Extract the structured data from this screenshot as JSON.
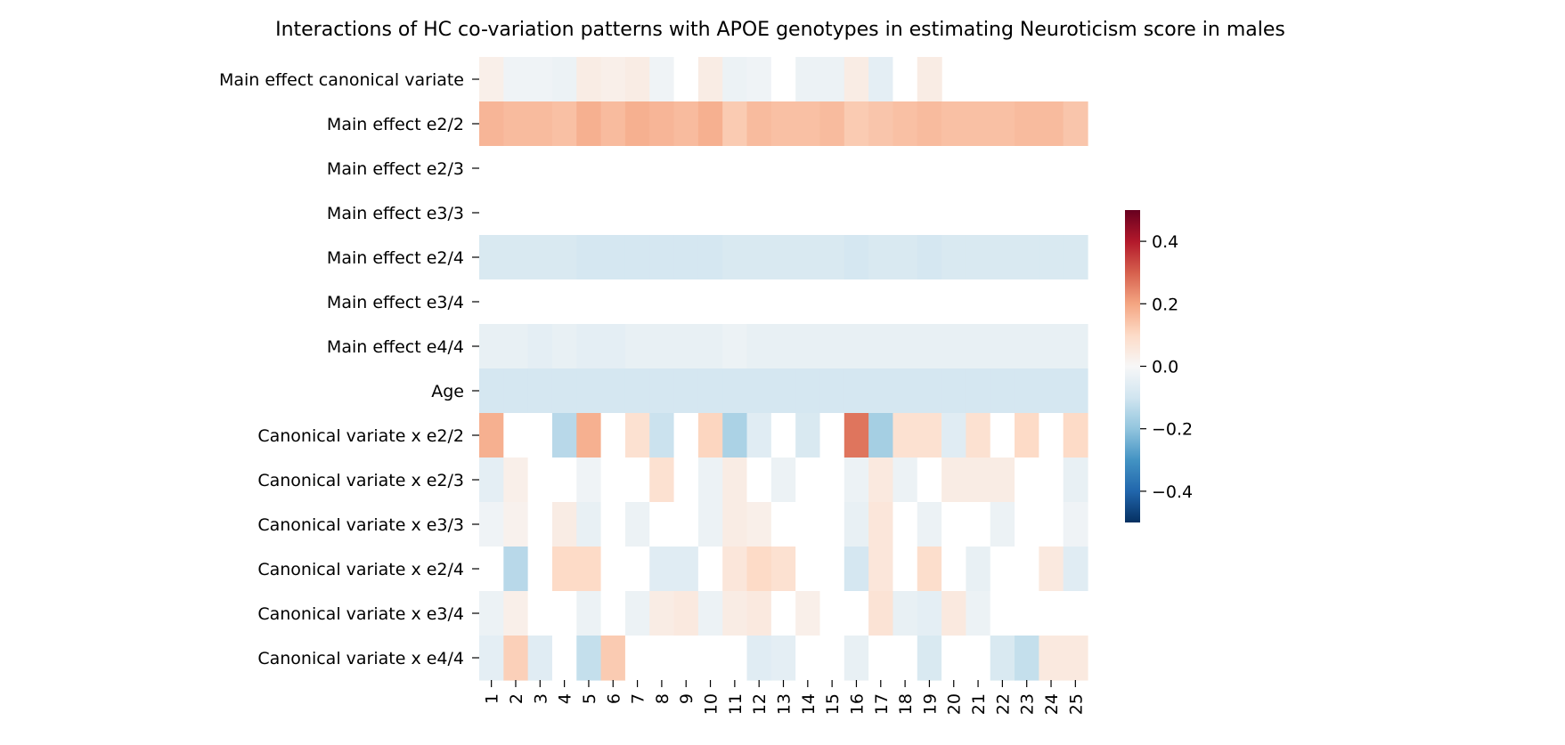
{
  "chart_data": {
    "type": "heatmap",
    "title": "Interactions of HC co-variation patterns with APOE genotypes in estimating Neuroticism score in males",
    "xlabel": "",
    "ylabel": "",
    "x_tick_labels": [
      "1",
      "2",
      "3",
      "4",
      "5",
      "6",
      "7",
      "8",
      "9",
      "10",
      "11",
      "12",
      "13",
      "14",
      "15",
      "16",
      "17",
      "18",
      "19",
      "20",
      "21",
      "22",
      "23",
      "24",
      "25"
    ],
    "y_tick_labels": [
      "Main effect canonical variate",
      "Main effect e2/2",
      "Main effect e2/3",
      "Main effect e3/3",
      "Main effect e2/4",
      "Main effect e3/4",
      "Main effect e4/4",
      "Age",
      "Canonical variate x e2/2",
      "Canonical variate x e2/3",
      "Canonical variate x e3/3",
      "Canonical variate x e2/4",
      "Canonical variate x e3/4",
      "Canonical variate x e4/4"
    ],
    "colormap": "RdBu_r",
    "vmin": -0.5,
    "vmax": 0.5,
    "colorbar_ticks": [
      -0.4,
      -0.2,
      0.0,
      0.2,
      0.4
    ],
    "colorbar_tick_labels": [
      "−0.4",
      "−0.2",
      "0.0",
      "0.2",
      "0.4"
    ],
    "values": [
      [
        0.03,
        -0.02,
        -0.02,
        -0.03,
        0.04,
        0.03,
        0.04,
        -0.02,
        0,
        0.04,
        -0.03,
        -0.02,
        0,
        -0.03,
        -0.03,
        0.04,
        -0.05,
        0,
        0.04,
        null,
        null,
        null,
        null,
        null,
        null
      ],
      [
        0.17,
        0.16,
        0.16,
        0.15,
        0.18,
        0.16,
        0.18,
        0.17,
        0.16,
        0.18,
        0.13,
        0.16,
        0.15,
        0.15,
        0.16,
        0.13,
        0.14,
        0.15,
        0.16,
        0.15,
        0.15,
        0.15,
        0.16,
        0.16,
        0.14
      ],
      [
        0,
        0,
        0,
        0,
        0,
        0,
        0,
        0,
        0,
        0,
        0,
        0,
        0,
        0,
        0,
        0,
        0,
        0,
        0,
        0,
        0,
        0,
        0,
        0,
        0
      ],
      [
        0,
        0,
        0,
        0,
        0,
        0,
        0,
        0,
        0,
        0,
        0,
        0,
        0,
        0,
        0,
        0,
        0,
        0,
        0,
        0,
        0,
        0,
        0,
        0,
        0
      ],
      [
        -0.08,
        -0.08,
        -0.08,
        -0.08,
        -0.09,
        -0.09,
        -0.09,
        -0.09,
        -0.09,
        -0.09,
        -0.08,
        -0.08,
        -0.08,
        -0.08,
        -0.08,
        -0.09,
        -0.08,
        -0.08,
        -0.09,
        -0.08,
        -0.08,
        -0.08,
        -0.08,
        -0.08,
        -0.08
      ],
      [
        0,
        0,
        0,
        0,
        0,
        0,
        0,
        0,
        0,
        0,
        0,
        0,
        0,
        0,
        0,
        0,
        0,
        0,
        0,
        0,
        0,
        0,
        0,
        0,
        0
      ],
      [
        -0.04,
        -0.04,
        -0.05,
        -0.04,
        -0.05,
        -0.05,
        -0.04,
        -0.04,
        -0.04,
        -0.04,
        -0.03,
        -0.04,
        -0.04,
        -0.04,
        -0.04,
        -0.04,
        -0.04,
        -0.04,
        -0.04,
        -0.04,
        -0.04,
        -0.04,
        -0.04,
        -0.04,
        -0.04
      ],
      [
        -0.09,
        -0.09,
        -0.09,
        -0.09,
        -0.09,
        -0.09,
        -0.09,
        -0.09,
        -0.09,
        -0.09,
        -0.09,
        -0.09,
        -0.09,
        -0.09,
        -0.09,
        -0.09,
        -0.09,
        -0.09,
        -0.09,
        -0.09,
        -0.09,
        -0.09,
        -0.09,
        -0.09,
        -0.09
      ],
      [
        0.18,
        0,
        0,
        -0.14,
        0.18,
        0,
        0.08,
        -0.11,
        0,
        0.11,
        -0.16,
        -0.06,
        0,
        -0.08,
        0,
        0.27,
        -0.17,
        0.08,
        0.08,
        -0.06,
        0.08,
        0,
        0.1,
        0,
        0.1
      ],
      [
        -0.05,
        0.03,
        0,
        0,
        -0.02,
        0,
        0,
        0.08,
        0,
        -0.03,
        0.04,
        0,
        -0.03,
        0,
        0,
        -0.03,
        0.05,
        -0.03,
        0,
        0.04,
        0.04,
        0.04,
        0,
        0,
        -0.04
      ],
      [
        -0.02,
        0.02,
        0,
        0.04,
        -0.04,
        0,
        -0.03,
        0,
        0,
        -0.03,
        0.04,
        0.03,
        0,
        0,
        0,
        -0.04,
        0.06,
        0,
        -0.03,
        0,
        0,
        -0.03,
        0,
        0,
        -0.02
      ],
      [
        0,
        -0.14,
        0,
        0.1,
        0.1,
        0,
        0,
        -0.06,
        -0.06,
        0,
        0.06,
        0.1,
        0.08,
        0,
        0,
        -0.09,
        0.06,
        0,
        0.09,
        0,
        -0.04,
        0,
        0,
        0.05,
        -0.06
      ],
      [
        -0.03,
        0.03,
        0,
        0,
        -0.03,
        0,
        -0.03,
        0.04,
        0.05,
        -0.03,
        0.04,
        0.05,
        0,
        0.03,
        0,
        0,
        0.07,
        -0.04,
        -0.05,
        0.05,
        -0.03,
        0,
        0,
        0,
        0
      ],
      [
        -0.05,
        0.12,
        -0.06,
        0,
        -0.12,
        0.13,
        0,
        0,
        0,
        0,
        0,
        -0.06,
        -0.05,
        0,
        0,
        -0.04,
        0,
        0,
        -0.08,
        0,
        0,
        -0.08,
        -0.12,
        0.05,
        0.05
      ]
    ]
  },
  "colors": {
    "background": "#ffffff",
    "text": "#000000"
  }
}
